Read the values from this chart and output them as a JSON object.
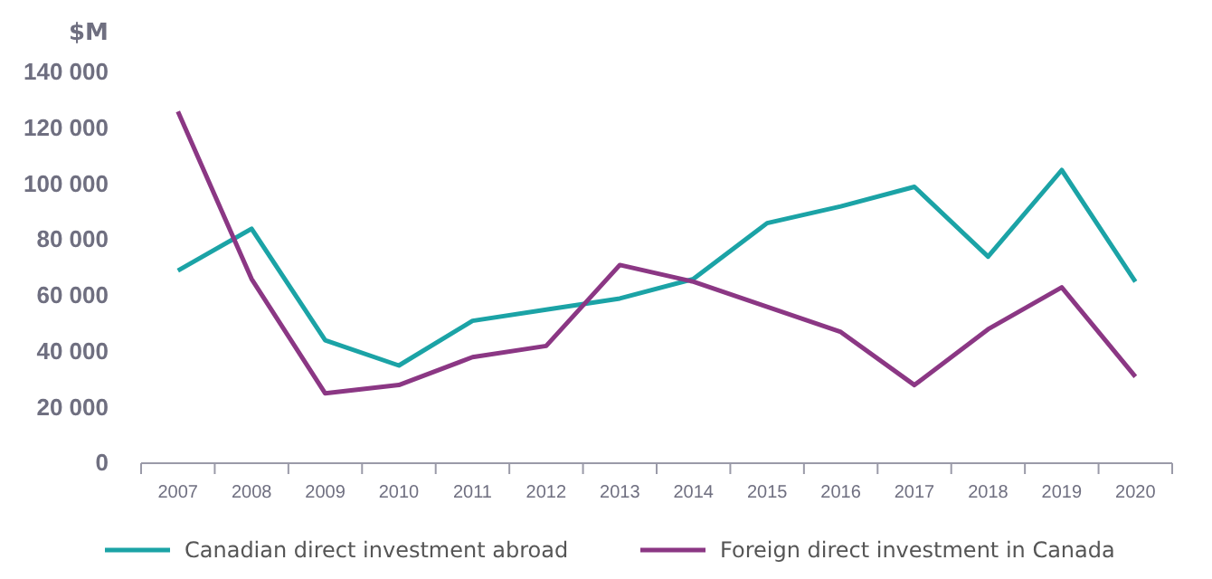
{
  "chart_data": {
    "type": "line",
    "ylabel": "$M",
    "categories": [
      "2007",
      "2008",
      "2009",
      "2010",
      "2011",
      "2012",
      "2013",
      "2014",
      "2015",
      "2016",
      "2017",
      "2018",
      "2019",
      "2020"
    ],
    "series": [
      {
        "name": "Canadian direct investment abroad",
        "color": "#1ba3a6",
        "values": [
          69000,
          84000,
          44000,
          35000,
          51000,
          55000,
          59000,
          66000,
          86000,
          92000,
          99000,
          74000,
          105000,
          65000
        ]
      },
      {
        "name": "Foreign direct investment in Canada",
        "color": "#8b3784",
        "values": [
          126000,
          66000,
          25000,
          28000,
          38000,
          42000,
          71000,
          65000,
          56000,
          47000,
          28000,
          48000,
          63000,
          31000
        ]
      }
    ],
    "ylim": [
      0,
      140000
    ],
    "yticks": [
      {
        "value": 0,
        "label": "0"
      },
      {
        "value": 20000,
        "label": "20 000"
      },
      {
        "value": 40000,
        "label": "40 000"
      },
      {
        "value": 60000,
        "label": "60 000"
      },
      {
        "value": 80000,
        "label": "80 000"
      },
      {
        "value": 100000,
        "label": "100 000"
      },
      {
        "value": 120000,
        "label": "120 000"
      },
      {
        "value": 140000,
        "label": "140 000"
      }
    ],
    "grid": false,
    "legend": "bottom",
    "marker": "none",
    "line_style": "solid"
  }
}
